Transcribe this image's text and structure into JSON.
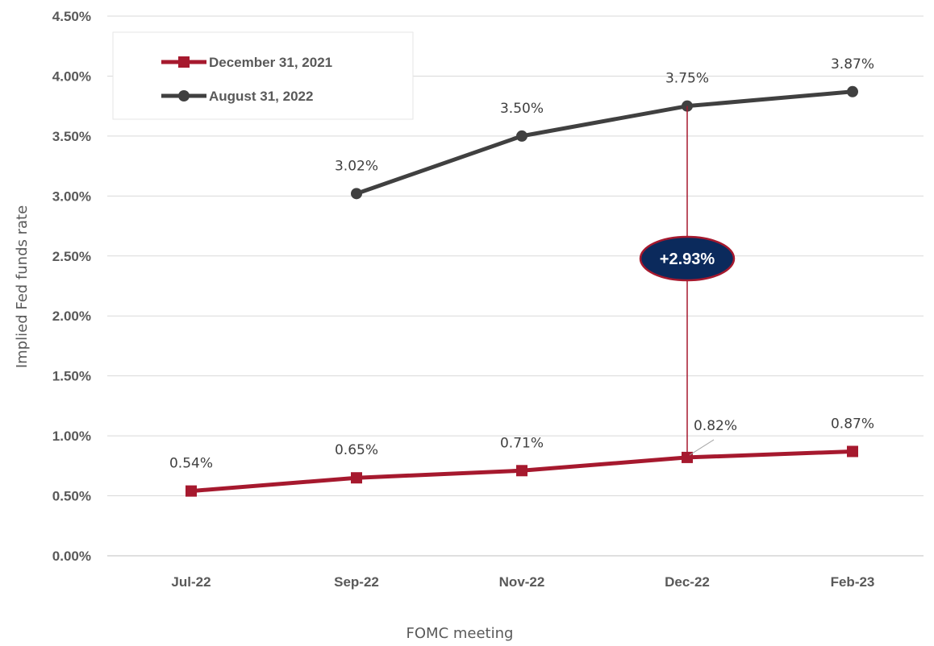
{
  "chart_data": {
    "type": "line",
    "categories": [
      "Jul-22",
      "Sep-22",
      "Nov-22",
      "Dec-22",
      "Feb-23"
    ],
    "series": [
      {
        "name": "December 31, 2021",
        "color": "#A6192E",
        "marker": "square",
        "values": [
          0.54,
          0.65,
          0.71,
          0.82,
          0.87
        ],
        "labels": [
          "0.54%",
          "0.65%",
          "0.71%",
          "0.82%",
          "0.87%"
        ]
      },
      {
        "name": "August 31, 2022",
        "color": "#404040",
        "marker": "circle",
        "values": [
          null,
          3.02,
          3.5,
          3.75,
          3.87
        ],
        "labels": [
          null,
          "3.02%",
          "3.50%",
          "3.75%",
          "3.87%"
        ]
      }
    ],
    "xlabel": "FOMC meeting",
    "ylabel": "Implied Fed funds rate",
    "ylim": [
      0,
      4.5
    ],
    "yticks": [
      "0.00%",
      "0.50%",
      "1.00%",
      "1.50%",
      "2.00%",
      "2.50%",
      "3.00%",
      "3.50%",
      "4.00%",
      "4.50%"
    ],
    "grid": "horizontal",
    "legend_position": "top-left",
    "annotation": {
      "text": "+2.93%",
      "category": "Dec-22",
      "from": 0.82,
      "to": 3.75,
      "fill_color": "#0B2A5C",
      "border_color": "#A6192E"
    }
  }
}
